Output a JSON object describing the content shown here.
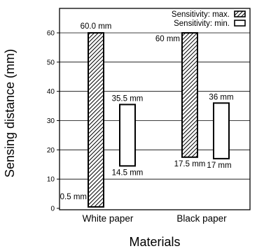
{
  "chart_data": {
    "type": "bar",
    "bar_style": "floating-range",
    "categories": [
      "White paper",
      "Black paper"
    ],
    "xlabel": "Materials",
    "ylabel": "Sensing distance  (mm)",
    "ylim": [
      0,
      65
    ],
    "yticks": [
      0,
      10,
      20,
      30,
      40,
      50,
      60
    ],
    "grid": true,
    "legend_position": "top-right",
    "series": [
      {
        "name": "Sensitivity: max.",
        "pattern": "diagonal-hatch",
        "ranges": [
          [
            0.5,
            60.0
          ],
          [
            17.5,
            60.0
          ]
        ],
        "labels": [
          {
            "top": "60.0 mm",
            "bottom": "0.5 mm"
          },
          {
            "top": "60 mm",
            "bottom": "17.5 mm"
          }
        ]
      },
      {
        "name": "Sensitivity: min.",
        "pattern": "none",
        "ranges": [
          [
            14.5,
            35.5
          ],
          [
            17.0,
            36.0
          ]
        ],
        "labels": [
          {
            "top": "35.5 mm",
            "bottom": "14.5 mm"
          },
          {
            "top": "36 mm",
            "bottom": "17 mm"
          }
        ]
      }
    ],
    "colors": {
      "stroke": "#000000",
      "fill_min": "#ffffff",
      "hatch": "#000000"
    }
  }
}
